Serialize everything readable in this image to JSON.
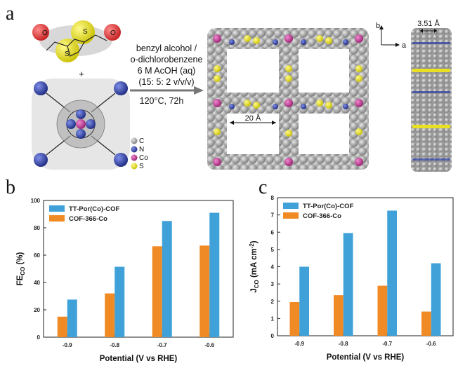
{
  "panels": {
    "a": "a",
    "b": "b",
    "c": "c"
  },
  "reaction": {
    "lines": [
      "benzyl alcohol /",
      "o-dichlorobenzene",
      "6 M AcOH (aq)",
      "(15: 5: 2 v/v/v)"
    ],
    "temp_time": "120°C, 72h",
    "plus": "+"
  },
  "legend_atoms": [
    "C",
    "N",
    "Co",
    "S"
  ],
  "atom_colors": {
    "C": "#9a9a9a",
    "N": "#2b3fa8",
    "Co": "#c43d9a",
    "S": "#e8e020",
    "O": "#d93030"
  },
  "structure_labels": {
    "pore": "20 Å",
    "stack": "3.51 Å",
    "axis_b": "b",
    "axis_a": "a"
  },
  "colors": {
    "series1": "#3fa1d8",
    "series2": "#f08a24"
  },
  "chart_data": [
    {
      "type": "bar",
      "categories": [
        "-0.9",
        "-0.8",
        "-0.7",
        "-0.6"
      ],
      "series": [
        {
          "name": "TT-Por(Co)-COF",
          "values": [
            27.5,
            51.5,
            85,
            91
          ]
        },
        {
          "name": "COF-366-Co",
          "values": [
            15,
            32,
            66.5,
            67
          ]
        }
      ],
      "xlabel": "Potential (V vs RHE)",
      "ylabel_main": "FE",
      "ylabel_sub": "CO",
      "ylabel_tail": " (%)",
      "ylim": [
        0,
        100
      ],
      "yticks": [
        0,
        20,
        40,
        60,
        80,
        100
      ],
      "legend_position": "top-left"
    },
    {
      "type": "bar",
      "categories": [
        "-0.9",
        "-0.8",
        "-0.7",
        "-0.6"
      ],
      "series": [
        {
          "name": "TT-Por(Co)-COF",
          "values": [
            4.0,
            5.95,
            7.25,
            4.2
          ]
        },
        {
          "name": "COF-366-Co",
          "values": [
            1.95,
            2.35,
            2.9,
            1.4
          ]
        }
      ],
      "xlabel": "Potential (V vs RHE)",
      "ylabel_main": "J",
      "ylabel_sub": "CO",
      "ylabel_tail": " (mA cm",
      "ylabel_sup": "-2",
      "ylabel_end": ")",
      "ylim": [
        0,
        8
      ],
      "yticks": [
        0,
        1,
        2,
        3,
        4,
        5,
        6,
        7,
        8
      ],
      "legend_position": "top-left"
    }
  ]
}
